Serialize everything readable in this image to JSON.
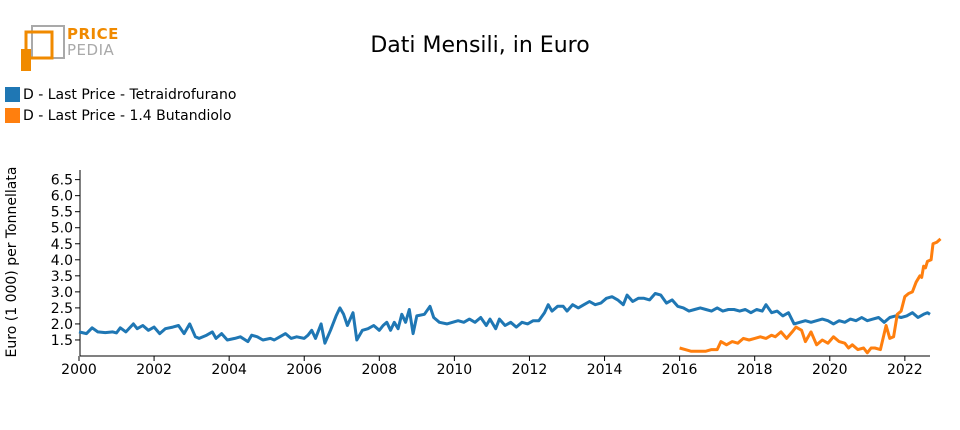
{
  "logo": {
    "word1": "PRICE",
    "word2": "PEDIA",
    "color_primary": "#f08a00",
    "color_secondary": "#a9a9a9"
  },
  "chart_data": {
    "type": "line",
    "title": "Dati Mensili, in Euro",
    "xlabel": "",
    "ylabel": "Euro (1 000) per Tonnellata",
    "xlim": [
      2000.0,
      2022.67
    ],
    "ylim": [
      1.0,
      6.8
    ],
    "x_ticks": [
      2000,
      2002,
      2004,
      2006,
      2008,
      2010,
      2012,
      2014,
      2016,
      2018,
      2020,
      2022
    ],
    "y_ticks": [
      1.5,
      2.0,
      2.5,
      3.0,
      3.5,
      4.0,
      4.5,
      5.0,
      5.5,
      6.0,
      6.5
    ],
    "y_tick_labels": [
      "1.5",
      "2.0",
      "2.5",
      "3.0",
      "3.5",
      "4.0",
      "4.5",
      "5.0",
      "5.5",
      "6.0",
      "6.5"
    ],
    "grid": false,
    "legend_position": "top-left",
    "series": [
      {
        "name": "D - Last Price - Tetraidrofurano",
        "color": "#1f77b4",
        "points": [
          [
            2000.0,
            1.75
          ],
          [
            2000.2,
            1.7
          ],
          [
            2000.35,
            1.88
          ],
          [
            2000.5,
            1.75
          ],
          [
            2000.7,
            1.73
          ],
          [
            2000.9,
            1.75
          ],
          [
            2001.0,
            1.72
          ],
          [
            2001.1,
            1.88
          ],
          [
            2001.25,
            1.75
          ],
          [
            2001.45,
            2.0
          ],
          [
            2001.55,
            1.85
          ],
          [
            2001.7,
            1.95
          ],
          [
            2001.85,
            1.8
          ],
          [
            2002.0,
            1.9
          ],
          [
            2002.15,
            1.7
          ],
          [
            2002.3,
            1.85
          ],
          [
            2002.5,
            1.9
          ],
          [
            2002.65,
            1.95
          ],
          [
            2002.8,
            1.7
          ],
          [
            2002.95,
            2.0
          ],
          [
            2003.1,
            1.6
          ],
          [
            2003.2,
            1.55
          ],
          [
            2003.4,
            1.65
          ],
          [
            2003.55,
            1.75
          ],
          [
            2003.65,
            1.55
          ],
          [
            2003.8,
            1.7
          ],
          [
            2003.95,
            1.5
          ],
          [
            2004.15,
            1.55
          ],
          [
            2004.3,
            1.6
          ],
          [
            2004.5,
            1.45
          ],
          [
            2004.6,
            1.65
          ],
          [
            2004.75,
            1.6
          ],
          [
            2004.9,
            1.5
          ],
          [
            2005.1,
            1.55
          ],
          [
            2005.2,
            1.5
          ],
          [
            2005.35,
            1.6
          ],
          [
            2005.5,
            1.7
          ],
          [
            2005.65,
            1.55
          ],
          [
            2005.8,
            1.6
          ],
          [
            2006.0,
            1.55
          ],
          [
            2006.1,
            1.65
          ],
          [
            2006.2,
            1.8
          ],
          [
            2006.3,
            1.55
          ],
          [
            2006.45,
            2.0
          ],
          [
            2006.55,
            1.4
          ],
          [
            2006.7,
            1.8
          ],
          [
            2006.85,
            2.25
          ],
          [
            2006.95,
            2.5
          ],
          [
            2007.05,
            2.3
          ],
          [
            2007.15,
            1.95
          ],
          [
            2007.3,
            2.35
          ],
          [
            2007.4,
            1.5
          ],
          [
            2007.55,
            1.8
          ],
          [
            2007.7,
            1.85
          ],
          [
            2007.85,
            1.95
          ],
          [
            2008.0,
            1.8
          ],
          [
            2008.1,
            1.95
          ],
          [
            2008.2,
            2.05
          ],
          [
            2008.3,
            1.8
          ],
          [
            2008.4,
            2.05
          ],
          [
            2008.5,
            1.85
          ],
          [
            2008.6,
            2.3
          ],
          [
            2008.7,
            2.05
          ],
          [
            2008.8,
            2.45
          ],
          [
            2008.9,
            1.7
          ],
          [
            2009.0,
            2.25
          ],
          [
            2009.2,
            2.3
          ],
          [
            2009.35,
            2.55
          ],
          [
            2009.45,
            2.2
          ],
          [
            2009.6,
            2.05
          ],
          [
            2009.8,
            2.0
          ],
          [
            2009.95,
            2.05
          ],
          [
            2010.1,
            2.1
          ],
          [
            2010.25,
            2.05
          ],
          [
            2010.4,
            2.15
          ],
          [
            2010.55,
            2.05
          ],
          [
            2010.7,
            2.2
          ],
          [
            2010.85,
            1.95
          ],
          [
            2010.95,
            2.15
          ],
          [
            2011.1,
            1.85
          ],
          [
            2011.2,
            2.15
          ],
          [
            2011.35,
            1.95
          ],
          [
            2011.5,
            2.05
          ],
          [
            2011.65,
            1.9
          ],
          [
            2011.8,
            2.05
          ],
          [
            2011.95,
            2.0
          ],
          [
            2012.1,
            2.1
          ],
          [
            2012.25,
            2.1
          ],
          [
            2012.4,
            2.35
          ],
          [
            2012.5,
            2.6
          ],
          [
            2012.6,
            2.4
          ],
          [
            2012.75,
            2.55
          ],
          [
            2012.9,
            2.55
          ],
          [
            2013.0,
            2.4
          ],
          [
            2013.15,
            2.6
          ],
          [
            2013.3,
            2.5
          ],
          [
            2013.45,
            2.6
          ],
          [
            2013.6,
            2.7
          ],
          [
            2013.75,
            2.6
          ],
          [
            2013.9,
            2.65
          ],
          [
            2014.05,
            2.8
          ],
          [
            2014.2,
            2.85
          ],
          [
            2014.35,
            2.75
          ],
          [
            2014.5,
            2.6
          ],
          [
            2014.6,
            2.9
          ],
          [
            2014.75,
            2.7
          ],
          [
            2014.9,
            2.8
          ],
          [
            2015.05,
            2.8
          ],
          [
            2015.2,
            2.75
          ],
          [
            2015.35,
            2.95
          ],
          [
            2015.5,
            2.9
          ],
          [
            2015.65,
            2.65
          ],
          [
            2015.8,
            2.75
          ],
          [
            2015.95,
            2.55
          ],
          [
            2016.1,
            2.5
          ],
          [
            2016.25,
            2.4
          ],
          [
            2016.4,
            2.45
          ],
          [
            2016.55,
            2.5
          ],
          [
            2016.7,
            2.45
          ],
          [
            2016.85,
            2.4
          ],
          [
            2017.0,
            2.5
          ],
          [
            2017.15,
            2.4
          ],
          [
            2017.3,
            2.45
          ],
          [
            2017.45,
            2.45
          ],
          [
            2017.6,
            2.4
          ],
          [
            2017.75,
            2.45
          ],
          [
            2017.9,
            2.35
          ],
          [
            2018.05,
            2.45
          ],
          [
            2018.2,
            2.4
          ],
          [
            2018.3,
            2.6
          ],
          [
            2018.45,
            2.35
          ],
          [
            2018.6,
            2.4
          ],
          [
            2018.75,
            2.25
          ],
          [
            2018.9,
            2.35
          ],
          [
            2019.05,
            2.0
          ],
          [
            2019.2,
            2.05
          ],
          [
            2019.35,
            2.1
          ],
          [
            2019.5,
            2.05
          ],
          [
            2019.65,
            2.1
          ],
          [
            2019.8,
            2.15
          ],
          [
            2019.95,
            2.1
          ],
          [
            2020.1,
            2.0
          ],
          [
            2020.25,
            2.1
          ],
          [
            2020.4,
            2.05
          ],
          [
            2020.55,
            2.15
          ],
          [
            2020.7,
            2.1
          ],
          [
            2020.85,
            2.2
          ],
          [
            2021.0,
            2.1
          ],
          [
            2021.15,
            2.15
          ],
          [
            2021.3,
            2.2
          ],
          [
            2021.45,
            2.05
          ],
          [
            2021.6,
            2.2
          ],
          [
            2021.75,
            2.25
          ],
          [
            2021.9,
            2.2
          ],
          [
            2022.05,
            2.25
          ],
          [
            2022.2,
            2.35
          ],
          [
            2022.35,
            2.2
          ],
          [
            2022.5,
            2.3
          ],
          [
            2022.6,
            2.35
          ],
          [
            2022.67,
            2.3
          ]
        ]
      },
      {
        "name": "D - Last Price - 1.4 Butandiolo",
        "color": "#ff7f0e",
        "points": [
          [
            2016.0,
            1.25
          ],
          [
            2016.15,
            1.2
          ],
          [
            2016.3,
            1.15
          ],
          [
            2016.5,
            1.15
          ],
          [
            2016.7,
            1.15
          ],
          [
            2016.85,
            1.2
          ],
          [
            2017.0,
            1.2
          ],
          [
            2017.1,
            1.45
          ],
          [
            2017.25,
            1.35
          ],
          [
            2017.4,
            1.45
          ],
          [
            2017.55,
            1.4
          ],
          [
            2017.7,
            1.55
          ],
          [
            2017.85,
            1.5
          ],
          [
            2018.0,
            1.55
          ],
          [
            2018.15,
            1.6
          ],
          [
            2018.3,
            1.55
          ],
          [
            2018.45,
            1.65
          ],
          [
            2018.55,
            1.6
          ],
          [
            2018.7,
            1.75
          ],
          [
            2018.85,
            1.55
          ],
          [
            2019.0,
            1.75
          ],
          [
            2019.1,
            1.9
          ],
          [
            2019.25,
            1.8
          ],
          [
            2019.35,
            1.45
          ],
          [
            2019.5,
            1.75
          ],
          [
            2019.65,
            1.35
          ],
          [
            2019.8,
            1.5
          ],
          [
            2019.95,
            1.4
          ],
          [
            2020.1,
            1.6
          ],
          [
            2020.25,
            1.45
          ],
          [
            2020.4,
            1.4
          ],
          [
            2020.5,
            1.25
          ],
          [
            2020.6,
            1.35
          ],
          [
            2020.75,
            1.2
          ],
          [
            2020.9,
            1.25
          ],
          [
            2021.0,
            1.1
          ],
          [
            2021.1,
            1.25
          ],
          [
            2021.2,
            1.25
          ],
          [
            2021.35,
            1.2
          ],
          [
            2021.5,
            1.95
          ],
          [
            2021.6,
            1.55
          ],
          [
            2021.7,
            1.6
          ],
          [
            2021.8,
            2.3
          ],
          [
            2021.9,
            2.4
          ],
          [
            2022.0,
            2.85
          ],
          [
            2022.1,
            2.95
          ],
          [
            2022.2,
            3.0
          ],
          [
            2022.3,
            3.3
          ],
          [
            2022.4,
            3.5
          ],
          [
            2022.45,
            3.45
          ],
          [
            2022.5,
            3.8
          ],
          [
            2022.55,
            3.75
          ],
          [
            2022.6,
            3.95
          ],
          [
            2022.7,
            4.0
          ],
          [
            2022.75,
            4.5
          ],
          [
            2022.85,
            4.55
          ],
          [
            2022.95,
            4.65
          ]
        ]
      }
    ]
  }
}
